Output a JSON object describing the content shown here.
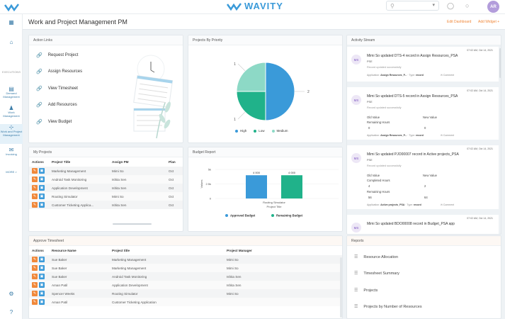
{
  "app": {
    "brand": "WAVITY",
    "search_placeholder": "",
    "user_initials": "AR",
    "colors": {
      "primary": "#3a9ad9",
      "accent": "#f0883a",
      "teal": "#20b28a",
      "light_teal": "#8dd9c6"
    }
  },
  "sidebar": {
    "section_label": "EXECUTIONS",
    "items": [
      {
        "label": "Demand Management",
        "icon": "inbox-icon"
      },
      {
        "label": "Work Management",
        "icon": "people-icon"
      },
      {
        "label": "Work and Project Management",
        "icon": "hierarchy-icon"
      },
      {
        "label": "Invoicing",
        "icon": "mail-icon"
      }
    ],
    "more_label": "MORE >"
  },
  "page": {
    "title": "Work and Project Management PM",
    "links": [
      "Edit Dashboard",
      "Add Widget +"
    ]
  },
  "action_links": {
    "title": "Action Links",
    "items": [
      "Request Project",
      "Assign Resources",
      "View Timesheet",
      "Add Resources",
      "View Budget"
    ]
  },
  "projects_by_priority": {
    "title": "Projects By Priority"
  },
  "chart_data": [
    {
      "type": "pie",
      "title": "Projects By Priority",
      "categories": [
        "High",
        "Low",
        "Medium"
      ],
      "values": [
        2,
        1,
        1
      ],
      "colors": [
        "#3a9ad9",
        "#20b28a",
        "#8dd9c6"
      ],
      "legend": "bottom"
    },
    {
      "type": "bar",
      "title": "Budget Report",
      "categories": [
        "Routing Simulator"
      ],
      "series": [
        {
          "name": "Approved Budget",
          "values": [
            4000
          ],
          "label": "4 000",
          "color": "#3a9ad9"
        },
        {
          "name": "Remaining Budget",
          "values": [
            4000
          ],
          "label": "4 000",
          "color": "#20b28a"
        }
      ],
      "xlabel": "Project Title",
      "ylabel": "Values",
      "yticks": [
        "0",
        "2.5k",
        "5k"
      ],
      "ylim": [
        0,
        5000
      ],
      "legend": "bottom"
    }
  ],
  "my_projects": {
    "title": "My Projects",
    "columns": [
      "Actions",
      "Project Title",
      "Assign PM",
      "Plan"
    ],
    "rows": [
      [
        "Marketing Management",
        "Mimi So",
        "Oct"
      ],
      [
        "Android Task Monitoring",
        "Ishita Sen",
        "Oct"
      ],
      [
        "Application Development",
        "Ishita Sen",
        "Oct"
      ],
      [
        "Routing Simulator",
        "Mimi So",
        "Oct"
      ],
      [
        "Customer Ticketing Applica...",
        "Ishita Sen",
        "Oct"
      ]
    ]
  },
  "budget_report": {
    "title": "Budget Report"
  },
  "activity_stream": {
    "title": "Activity Stream",
    "items": [
      {
        "initials": "MS",
        "time": "07:02 AM, Oct 14, 2021",
        "title": "Mimi So updated DTS-4 record in Assign Resources_PSA",
        "tag": "PSE",
        "message": "Record updated successfully",
        "application": "Assign Resources_P...",
        "type": "record",
        "comments": "Comment"
      },
      {
        "initials": "MS",
        "time": "07:02 AM, Oct 14, 2021",
        "title": "Mimi So updated DTS-5 record in Assign Resources_PSA",
        "tag": "PSE",
        "message": "Record updated successfully",
        "old_label": "Old Value",
        "new_label": "New Value",
        "field": "Remaining Hours",
        "old": "0",
        "new": "0",
        "application": "Assign Resources_P...",
        "type": "record",
        "comments": "Comment"
      },
      {
        "initials": "MS",
        "time": "07:02 AM, Oct 14, 2021",
        "title": "Mimi So updated PJO00007 record in Active projects_PSA",
        "tag": "PSE",
        "message": "Record updated successfully",
        "old_label": "Old Value",
        "new_label": "New Value",
        "field": "Completed Hours",
        "old": "4",
        "new": "2",
        "field2": "Remaining Hours",
        "old2": "56",
        "new2": "64",
        "application": "Active projects_PSA",
        "type": "record",
        "comments": "Comment"
      },
      {
        "initials": "MS",
        "time": "07:02 AM, Oct 14, 2021",
        "title": "Mimi So updated BDO00008 record in Budget_PSA app"
      }
    ]
  },
  "approve_timesheet": {
    "title": "Approve Timesheet",
    "columns": [
      "Actions",
      "Resource Name",
      "Project title",
      "Project Manager"
    ],
    "rows": [
      [
        "Sue Baker",
        "Marketing Management",
        "Mimi So"
      ],
      [
        "Sue Baker",
        "Marketing Management",
        "Mimi So"
      ],
      [
        "Sue Baker",
        "Android Task Monitoring",
        "Ishita Sen"
      ],
      [
        "Aman Patil",
        "Application Development",
        "Ishita Sen"
      ],
      [
        "Spencer Weeks",
        "Routing Simulator",
        "Mimi So"
      ],
      [
        "Aman Patil",
        "Customer Ticketing Application",
        ""
      ]
    ]
  },
  "reports": {
    "title": "Reports",
    "items": [
      "Resource Allocation",
      "Timesheet Summary",
      "Projects",
      "Projects by Number of Resources"
    ]
  }
}
